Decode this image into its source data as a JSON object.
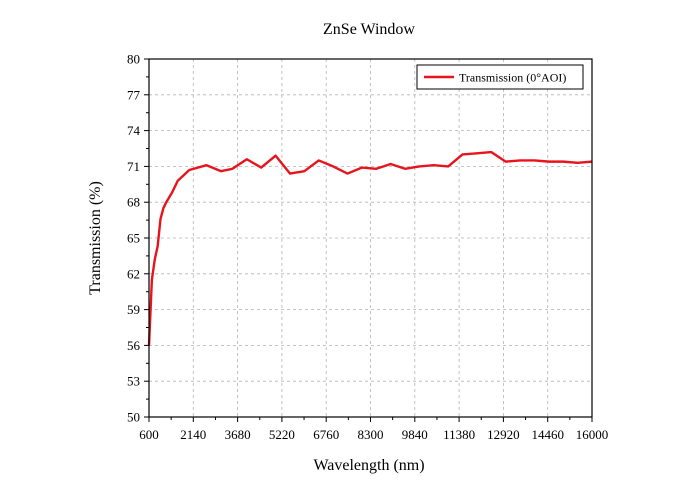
{
  "chart_data": {
    "type": "line",
    "title": "ZnSe Window",
    "xlabel": "Wavelength (nm)",
    "ylabel": "Transmission (%)",
    "xlim": [
      600,
      16000
    ],
    "ylim": [
      50,
      80
    ],
    "xticks": [
      600,
      2140,
      3680,
      5220,
      6760,
      8300,
      9840,
      11380,
      12920,
      14460,
      16000
    ],
    "yticks": [
      50,
      53,
      56,
      59,
      62,
      65,
      68,
      71,
      74,
      77,
      80
    ],
    "grid": true,
    "legend_position": "top-right",
    "series": [
      {
        "name": "Transmission (0°AOI)",
        "color": "#e8141c",
        "x": [
          600,
          700,
          800,
          900,
          1000,
          1100,
          1200,
          1400,
          1600,
          2000,
          2600,
          3100,
          3500,
          4000,
          4500,
          5000,
          5500,
          6000,
          6500,
          7000,
          7500,
          8000,
          8500,
          9000,
          9500,
          10000,
          10500,
          11000,
          11500,
          12000,
          12500,
          13000,
          13500,
          14000,
          14500,
          15000,
          15500,
          16000
        ],
        "y": [
          56.0,
          61.5,
          63.2,
          64.3,
          66.6,
          67.5,
          68.0,
          68.8,
          69.8,
          70.7,
          71.1,
          70.6,
          70.8,
          71.6,
          70.9,
          71.9,
          70.4,
          70.6,
          71.5,
          71.0,
          70.4,
          70.9,
          70.8,
          71.2,
          70.8,
          71.0,
          71.1,
          71.0,
          72.0,
          72.1,
          72.2,
          71.4,
          71.5,
          71.5,
          71.4,
          71.4,
          71.3,
          71.4
        ]
      }
    ]
  }
}
